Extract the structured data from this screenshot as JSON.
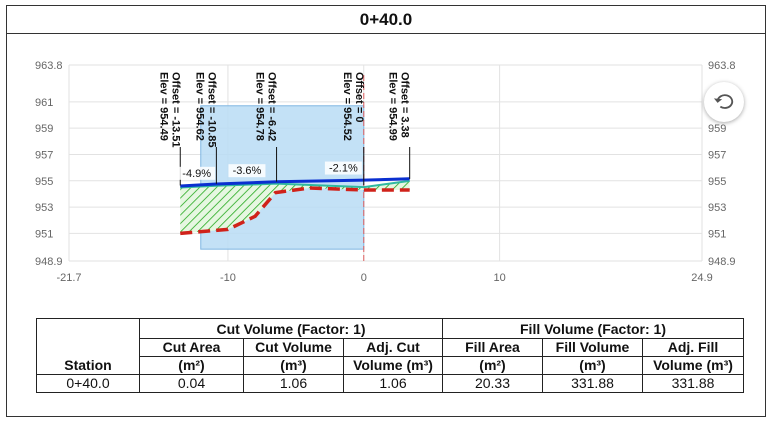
{
  "panel": {
    "title": "0+40.0"
  },
  "chart_data": {
    "type": "line",
    "xlim": [
      -21.7,
      24.9
    ],
    "ylim": [
      948.9,
      963.8
    ],
    "x_ticks": [
      "-21.7",
      "-10",
      "0",
      "10",
      "24.9"
    ],
    "y_ticks": [
      "963.8",
      "961",
      "959",
      "957",
      "955",
      "953",
      "951",
      "948.9"
    ],
    "series": [
      {
        "x": [
          -13.51,
          -10.85,
          -6.42,
          0,
          3.38
        ],
        "y": [
          954.49,
          954.62,
          954.78,
          954.52,
          954.99
        ]
      },
      {
        "x": [
          -13.51,
          -10.85,
          -6.42,
          0,
          3.38
        ],
        "y": [
          954.6,
          954.75,
          954.92,
          955.05,
          955.15
        ]
      },
      {
        "x": [
          -13.51,
          -10,
          -8,
          -6.5,
          -4,
          0,
          3.38
        ],
        "y": [
          951.0,
          951.3,
          952.3,
          954.1,
          954.45,
          954.3,
          954.3
        ]
      }
    ],
    "points": [
      {
        "label": "Offset = -13.51",
        "elev": "Elev = 954.49",
        "x": -13.51,
        "y": 954.49
      },
      {
        "label": "Offset = -10.85",
        "elev": "Elev = 954.62",
        "x": -10.85,
        "y": 954.62
      },
      {
        "label": "Offset = -6.42",
        "elev": "Elev = 954.78",
        "x": -6.42,
        "y": 954.78
      },
      {
        "label": "Offset = 0",
        "elev": "Elev = 954.52",
        "x": 0,
        "y": 954.52
      },
      {
        "label": "Offset = 3.38",
        "elev": "Elev = 954.99",
        "x": 3.38,
        "y": 954.99
      }
    ],
    "slopes": [
      {
        "text": "-4.9%",
        "x": -12.3,
        "y": 955.3
      },
      {
        "text": "-3.6%",
        "x": -8.6,
        "y": 955.5
      },
      {
        "text": "-2.1%",
        "x": -1.5,
        "y": 955.7
      }
    ],
    "highlight": {
      "x": [
        -12,
        0
      ],
      "y": [
        949.8,
        960.7
      ]
    },
    "colors": {
      "design": "#0a2fd0",
      "existing": "#d0221a",
      "fill": "#23a81c",
      "highlight": "#b9dcf5"
    }
  },
  "table": {
    "group_cut": "Cut Volume (Factor: 1)",
    "group_fill": "Fill Volume (Factor: 1)",
    "station_header": "Station",
    "headers": [
      [
        "Cut Area",
        "(m²)"
      ],
      [
        "Cut Volume",
        "(m³)"
      ],
      [
        "Adj. Cut",
        "Volume (m³)"
      ],
      [
        "Fill Area",
        "(m²)"
      ],
      [
        "Fill Volume",
        "(m³)"
      ],
      [
        "Adj. Fill",
        "Volume (m³)"
      ]
    ],
    "row": {
      "station": "0+40.0",
      "values": [
        "0.04",
        "1.06",
        "1.06",
        "20.33",
        "331.88",
        "331.88"
      ]
    }
  }
}
